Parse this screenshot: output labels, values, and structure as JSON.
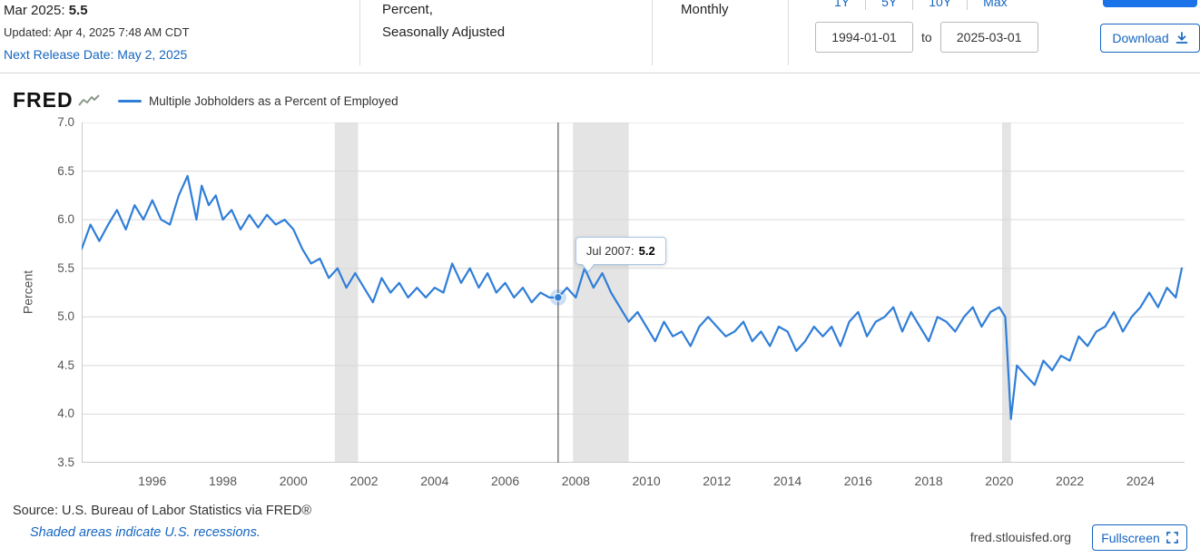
{
  "header": {
    "observation": {
      "date_label": "Mar 2025:",
      "value": "5.5",
      "updated": "Updated: Apr 4, 2025 7:48 AM CDT",
      "next_release": "Next Release Date: May 2, 2025"
    },
    "units_line1": "Percent,",
    "units_line2": "Seasonally Adjusted",
    "frequency": "Monthly",
    "range_buttons": [
      "1Y",
      "5Y",
      "10Y",
      "Max"
    ],
    "date_from": "1994-01-01",
    "date_to_label": "to",
    "date_to": "2025-03-01",
    "download_label": "Download"
  },
  "graph": {
    "brand": "FRED",
    "legend_label": "Multiple Jobholders as a Percent of Employed",
    "tooltip": {
      "label": "Jul 2007:",
      "value": "5.2"
    }
  },
  "footer": {
    "source": "Source: U.S. Bureau of Labor Statistics via FRED®",
    "recession_note": "Shaded areas indicate U.S. recessions.",
    "site": "fred.stlouisfed.org",
    "fullscreen_label": "Fullscreen"
  },
  "colors": {
    "line": "#2f7ed8",
    "accent": "#1565c0",
    "recession": "#e4e4e4",
    "grid": "#d8d8d8"
  },
  "chart_data": {
    "type": "line",
    "title": "Multiple Jobholders as a Percent of Employed",
    "ylabel": "Percent",
    "xlabel": "",
    "xlim": [
      1994.0,
      2025.25
    ],
    "ylim": [
      3.5,
      7.0
    ],
    "yticks": [
      7.0,
      6.5,
      6.0,
      5.5,
      5.0,
      4.5,
      4.0,
      3.5
    ],
    "xticks": [
      1996,
      1998,
      2000,
      2002,
      2004,
      2006,
      2008,
      2010,
      2012,
      2014,
      2016,
      2018,
      2020,
      2022,
      2024
    ],
    "grid": true,
    "legend_position": "top",
    "recessions": [
      [
        2001.17,
        2001.83
      ],
      [
        2007.92,
        2009.5
      ],
      [
        2020.08,
        2020.33
      ]
    ],
    "cursor": {
      "x": 2007.5,
      "y": 5.2
    },
    "series": [
      {
        "name": "Multiple Jobholders as a Percent of Employed",
        "points": [
          [
            1994.0,
            5.7
          ],
          [
            1994.25,
            5.95
          ],
          [
            1994.5,
            5.78
          ],
          [
            1994.75,
            5.95
          ],
          [
            1995.0,
            6.1
          ],
          [
            1995.25,
            5.9
          ],
          [
            1995.5,
            6.15
          ],
          [
            1995.75,
            6.0
          ],
          [
            1996.0,
            6.2
          ],
          [
            1996.25,
            6.0
          ],
          [
            1996.5,
            5.95
          ],
          [
            1996.75,
            6.25
          ],
          [
            1997.0,
            6.45
          ],
          [
            1997.25,
            6.0
          ],
          [
            1997.4,
            6.35
          ],
          [
            1997.6,
            6.15
          ],
          [
            1997.8,
            6.25
          ],
          [
            1998.0,
            6.0
          ],
          [
            1998.25,
            6.1
          ],
          [
            1998.5,
            5.9
          ],
          [
            1998.75,
            6.05
          ],
          [
            1999.0,
            5.92
          ],
          [
            1999.25,
            6.05
          ],
          [
            1999.5,
            5.95
          ],
          [
            1999.75,
            6.0
          ],
          [
            2000.0,
            5.9
          ],
          [
            2000.25,
            5.7
          ],
          [
            2000.5,
            5.55
          ],
          [
            2000.75,
            5.6
          ],
          [
            2001.0,
            5.4
          ],
          [
            2001.25,
            5.5
          ],
          [
            2001.5,
            5.3
          ],
          [
            2001.75,
            5.45
          ],
          [
            2002.0,
            5.3
          ],
          [
            2002.25,
            5.15
          ],
          [
            2002.5,
            5.4
          ],
          [
            2002.75,
            5.25
          ],
          [
            2003.0,
            5.35
          ],
          [
            2003.25,
            5.2
          ],
          [
            2003.5,
            5.3
          ],
          [
            2003.75,
            5.2
          ],
          [
            2004.0,
            5.3
          ],
          [
            2004.25,
            5.25
          ],
          [
            2004.5,
            5.55
          ],
          [
            2004.75,
            5.35
          ],
          [
            2005.0,
            5.5
          ],
          [
            2005.25,
            5.3
          ],
          [
            2005.5,
            5.45
          ],
          [
            2005.75,
            5.25
          ],
          [
            2006.0,
            5.35
          ],
          [
            2006.25,
            5.2
          ],
          [
            2006.5,
            5.3
          ],
          [
            2006.75,
            5.15
          ],
          [
            2007.0,
            5.25
          ],
          [
            2007.25,
            5.2
          ],
          [
            2007.5,
            5.2
          ],
          [
            2007.75,
            5.3
          ],
          [
            2008.0,
            5.2
          ],
          [
            2008.25,
            5.5
          ],
          [
            2008.5,
            5.3
          ],
          [
            2008.75,
            5.45
          ],
          [
            2009.0,
            5.25
          ],
          [
            2009.25,
            5.1
          ],
          [
            2009.5,
            4.95
          ],
          [
            2009.75,
            5.05
          ],
          [
            2010.0,
            4.9
          ],
          [
            2010.25,
            4.75
          ],
          [
            2010.5,
            4.95
          ],
          [
            2010.75,
            4.8
          ],
          [
            2011.0,
            4.85
          ],
          [
            2011.25,
            4.7
          ],
          [
            2011.5,
            4.9
          ],
          [
            2011.75,
            5.0
          ],
          [
            2012.0,
            4.9
          ],
          [
            2012.25,
            4.8
          ],
          [
            2012.5,
            4.85
          ],
          [
            2012.75,
            4.95
          ],
          [
            2013.0,
            4.75
          ],
          [
            2013.25,
            4.85
          ],
          [
            2013.5,
            4.7
          ],
          [
            2013.75,
            4.9
          ],
          [
            2014.0,
            4.85
          ],
          [
            2014.25,
            4.65
          ],
          [
            2014.5,
            4.75
          ],
          [
            2014.75,
            4.9
          ],
          [
            2015.0,
            4.8
          ],
          [
            2015.25,
            4.9
          ],
          [
            2015.5,
            4.7
          ],
          [
            2015.75,
            4.95
          ],
          [
            2016.0,
            5.05
          ],
          [
            2016.25,
            4.8
          ],
          [
            2016.5,
            4.95
          ],
          [
            2016.75,
            5.0
          ],
          [
            2017.0,
            5.1
          ],
          [
            2017.25,
            4.85
          ],
          [
            2017.5,
            5.05
          ],
          [
            2017.75,
            4.9
          ],
          [
            2018.0,
            4.75
          ],
          [
            2018.25,
            5.0
          ],
          [
            2018.5,
            4.95
          ],
          [
            2018.75,
            4.85
          ],
          [
            2019.0,
            5.0
          ],
          [
            2019.25,
            5.1
          ],
          [
            2019.5,
            4.9
          ],
          [
            2019.75,
            5.05
          ],
          [
            2020.0,
            5.1
          ],
          [
            2020.17,
            5.0
          ],
          [
            2020.33,
            3.95
          ],
          [
            2020.5,
            4.5
          ],
          [
            2020.75,
            4.4
          ],
          [
            2021.0,
            4.3
          ],
          [
            2021.25,
            4.55
          ],
          [
            2021.5,
            4.45
          ],
          [
            2021.75,
            4.6
          ],
          [
            2022.0,
            4.55
          ],
          [
            2022.25,
            4.8
          ],
          [
            2022.5,
            4.7
          ],
          [
            2022.75,
            4.85
          ],
          [
            2023.0,
            4.9
          ],
          [
            2023.25,
            5.05
          ],
          [
            2023.5,
            4.85
          ],
          [
            2023.75,
            5.0
          ],
          [
            2024.0,
            5.1
          ],
          [
            2024.25,
            5.25
          ],
          [
            2024.5,
            5.1
          ],
          [
            2024.75,
            5.3
          ],
          [
            2025.0,
            5.2
          ],
          [
            2025.17,
            5.5
          ]
        ]
      }
    ]
  }
}
